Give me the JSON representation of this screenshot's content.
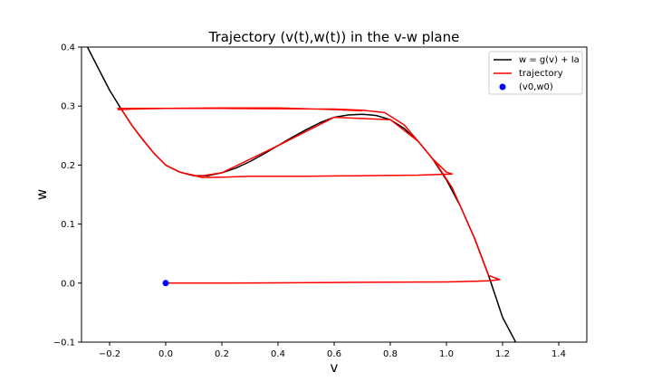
{
  "chart_data": {
    "type": "line",
    "title": "Trajectory (v(t),w(t)) in the v-w plane",
    "xlabel": "v",
    "ylabel": "w",
    "xlim": [
      -0.3,
      1.5
    ],
    "ylim": [
      -0.1,
      0.4
    ],
    "xticks": [
      -0.2,
      0.0,
      0.2,
      0.4,
      0.6,
      0.8,
      1.0,
      1.2,
      1.4
    ],
    "xtick_labels": [
      "−0.2",
      "0.0",
      "0.2",
      "0.4",
      "0.6",
      "0.8",
      "1.0",
      "1.2",
      "1.4"
    ],
    "yticks": [
      -0.1,
      0.0,
      0.1,
      0.2,
      0.3,
      0.4
    ],
    "ytick_labels": [
      "−0.1",
      "0.0",
      "0.1",
      "0.2",
      "0.3",
      "0.4"
    ],
    "grid": false,
    "legend_position": "top-right",
    "series": [
      {
        "name": "w = g(v) + Ia",
        "color": "#000000",
        "type": "line",
        "x": [
          -0.28,
          -0.24,
          -0.2,
          -0.16,
          -0.12,
          -0.08,
          -0.04,
          0.0,
          0.05,
          0.1,
          0.15,
          0.2,
          0.25,
          0.3,
          0.35,
          0.4,
          0.45,
          0.5,
          0.55,
          0.6,
          0.65,
          0.7,
          0.73,
          0.75,
          0.8,
          0.85,
          0.9,
          0.95,
          1.0,
          1.05,
          1.1,
          1.15,
          1.2,
          1.25
        ],
        "y": [
          0.401,
          0.364,
          0.327,
          0.296,
          0.267,
          0.242,
          0.219,
          0.2,
          0.188,
          0.182,
          0.182,
          0.187,
          0.195,
          0.206,
          0.219,
          0.233,
          0.247,
          0.26,
          0.272,
          0.281,
          0.285,
          0.286,
          0.285,
          0.284,
          0.277,
          0.262,
          0.24,
          0.211,
          0.175,
          0.13,
          0.076,
          0.013,
          -0.058,
          -0.103
        ]
      },
      {
        "name": "trajectory",
        "color": "#ff0000",
        "type": "line",
        "x": [
          0.0,
          0.2,
          0.4,
          0.6,
          0.8,
          1.0,
          1.1,
          1.15,
          1.19,
          1.15,
          1.1,
          1.05,
          1.02,
          0.96,
          0.9,
          0.8,
          0.6,
          0.4,
          0.2,
          0.12,
          0.05,
          0.0,
          -0.04,
          -0.08,
          -0.12,
          -0.16,
          -0.17,
          -0.12,
          0.0,
          0.2,
          0.4,
          0.6,
          0.7,
          0.78,
          0.85,
          0.9,
          0.95,
          1.0,
          1.02,
          0.9,
          0.7,
          0.5,
          0.3,
          0.2,
          0.13,
          0.05,
          0.0,
          -0.04,
          -0.08,
          -0.12,
          -0.16,
          -0.17,
          -0.12,
          0.0,
          0.2,
          0.4,
          0.6,
          0.7
        ],
        "y": [
          0.0,
          0.0,
          0.0005,
          0.001,
          0.0015,
          0.002,
          0.003,
          0.004,
          0.006,
          0.013,
          0.076,
          0.13,
          0.162,
          0.205,
          0.24,
          0.277,
          0.281,
          0.233,
          0.187,
          0.181,
          0.188,
          0.2,
          0.219,
          0.242,
          0.267,
          0.296,
          0.296,
          0.296,
          0.296,
          0.296,
          0.2955,
          0.295,
          0.293,
          0.289,
          0.268,
          0.24,
          0.211,
          0.188,
          0.185,
          0.183,
          0.182,
          0.181,
          0.181,
          0.1795,
          0.179,
          0.188,
          0.2,
          0.219,
          0.242,
          0.267,
          0.296,
          0.294,
          0.295,
          0.296,
          0.297,
          0.297,
          0.294,
          0.292
        ]
      },
      {
        "name": "(v0,w0)",
        "color": "#0000ff",
        "type": "scatter",
        "x": [
          0.0
        ],
        "y": [
          0.0
        ]
      }
    ]
  }
}
